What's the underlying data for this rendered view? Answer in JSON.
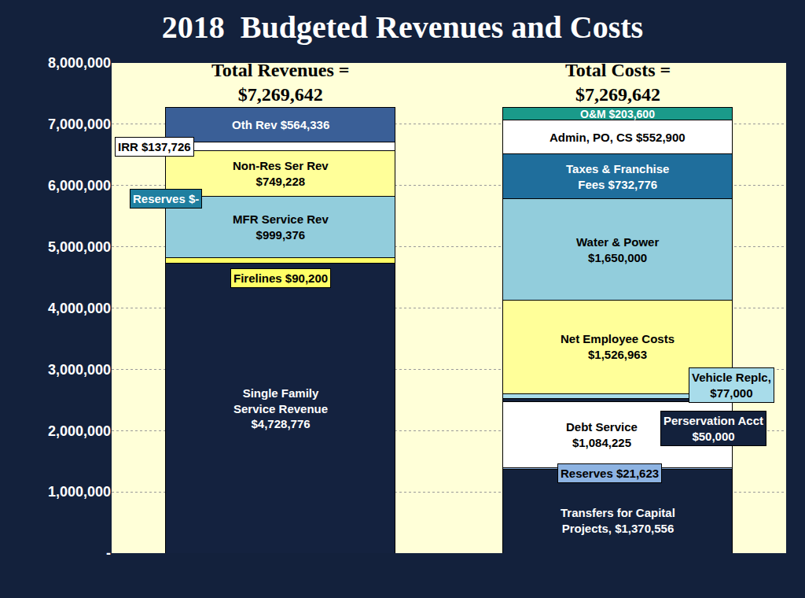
{
  "chart_data": {
    "type": "bar",
    "title": "2018  Budgeted Revenues and Costs",
    "categories": [
      "Total Revenues =",
      "Total Costs ="
    ],
    "totals": [
      7269642,
      7269642
    ],
    "total_labels": [
      "$7,269,642",
      "$7,269,642"
    ],
    "stacked": true,
    "data_labels": true,
    "tick_labels": "y",
    "grid": true,
    "ylim": [
      0,
      8000000
    ],
    "yticks": [
      {
        "value": 0,
        "label": "-"
      },
      {
        "value": 1000000,
        "label": "1,000,000"
      },
      {
        "value": 2000000,
        "label": "2,000,000"
      },
      {
        "value": 3000000,
        "label": "3,000,000"
      },
      {
        "value": 4000000,
        "label": "4,000,000"
      },
      {
        "value": 5000000,
        "label": "5,000,000"
      },
      {
        "value": 6000000,
        "label": "6,000,000"
      },
      {
        "value": 7000000,
        "label": "7,000,000"
      },
      {
        "value": 8000000,
        "label": "8,000,000"
      }
    ],
    "series": [
      {
        "name": "Single Family\nService Revenue",
        "color": "#14223f",
        "values": [
          4728776,
          null
        ],
        "value_labels": [
          "$4,728,776",
          null
        ]
      },
      {
        "name": "Firelines",
        "color": "#ffff66",
        "values": [
          90200,
          null
        ],
        "value_labels": [
          "$90,200",
          null
        ]
      },
      {
        "name": "MFR Service Rev",
        "color": "#92cddc",
        "values": [
          999376,
          null
        ],
        "value_labels": [
          "$999,376",
          null
        ]
      },
      {
        "name": "Reserves",
        "color": "#1f7fa0",
        "values": [
          0,
          null
        ],
        "value_labels": [
          "$-",
          null
        ]
      },
      {
        "name": "Non-Res Ser Rev",
        "color": "#ffff99",
        "values": [
          749228,
          null
        ],
        "value_labels": [
          "$749,228",
          null
        ]
      },
      {
        "name": "IRR",
        "color": "#ffffff",
        "values": [
          137726,
          null
        ],
        "value_labels": [
          "$137,726",
          null
        ]
      },
      {
        "name": "Oth Rev",
        "color": "#3a5f97",
        "values": [
          564336,
          null
        ],
        "value_labels": [
          "$564,336",
          null
        ]
      },
      {
        "name": "Transfers for Capital\nProjects,",
        "color": "#13213c",
        "values": [
          null,
          1370556
        ],
        "value_labels": [
          null,
          "$1,370,556"
        ]
      },
      {
        "name": "Reserves",
        "color": "#8db3e2",
        "values": [
          null,
          21623
        ],
        "value_labels": [
          null,
          "$21,623"
        ]
      },
      {
        "name": "Debt Service",
        "color": "#ffffff",
        "values": [
          null,
          1084225
        ],
        "value_labels": [
          null,
          "$1,084,225"
        ]
      },
      {
        "name": "Perservation Acct",
        "color": "#13213c",
        "values": [
          null,
          50000
        ],
        "value_labels": [
          null,
          "$50,000"
        ]
      },
      {
        "name": "Vehicle Replc,",
        "color": "#a8dcea",
        "values": [
          null,
          77000
        ],
        "value_labels": [
          null,
          "$77,000"
        ]
      },
      {
        "name": "Net Employee Costs",
        "color": "#ffff99",
        "values": [
          null,
          1526963
        ],
        "value_labels": [
          null,
          "$1,526,963"
        ]
      },
      {
        "name": "Water & Power",
        "color": "#92cddc",
        "values": [
          null,
          1650000
        ],
        "value_labels": [
          null,
          "$1,650,000"
        ]
      },
      {
        "name": "Taxes & Franchise\nFees",
        "color": "#1f6e9c",
        "values": [
          null,
          732776
        ],
        "value_labels": [
          null,
          "$732,776"
        ]
      },
      {
        "name": "Admin, PO, CS",
        "color": "#ffffff",
        "values": [
          null,
          552900
        ],
        "value_labels": [
          null,
          "$552,900"
        ]
      },
      {
        "name": "O&M",
        "color": "#1a9a8a",
        "values": [
          null,
          203600
        ],
        "value_labels": [
          null,
          "$203,600"
        ]
      }
    ]
  }
}
